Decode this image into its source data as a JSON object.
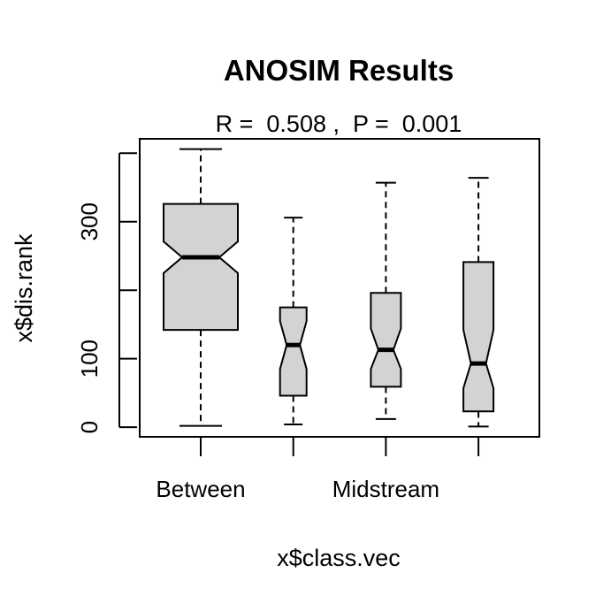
{
  "chart_data": {
    "type": "box",
    "title": "ANOSIM Results",
    "subtitle": "R =  0.508 ,  P =  0.001",
    "xlabel": "x$class.vec",
    "ylabel": "x$dis.rank",
    "ylim": [
      -14,
      421
    ],
    "y_ticks": [
      0,
      100,
      200,
      300,
      400
    ],
    "y_tick_labels": [
      "0",
      "100",
      "",
      "300",
      ""
    ],
    "categories": [
      "Between",
      "",
      "Midstream",
      ""
    ],
    "notched": true,
    "box_fill": "#d3d3d3",
    "boxes": [
      {
        "min": 2,
        "q1": 142,
        "median": 248,
        "q3": 326,
        "max": 406,
        "notch_low": 225,
        "notch_high": 271
      },
      {
        "min": 4,
        "q1": 46,
        "median": 120,
        "q3": 175,
        "max": 306,
        "notch_low": 85,
        "notch_high": 155
      },
      {
        "min": 12,
        "q1": 59,
        "median": 113,
        "q3": 196,
        "max": 357,
        "notch_low": 85,
        "notch_high": 144
      },
      {
        "min": 1,
        "q1": 23,
        "median": 93,
        "q3": 241,
        "max": 364,
        "notch_low": 57,
        "notch_high": 142
      }
    ]
  }
}
